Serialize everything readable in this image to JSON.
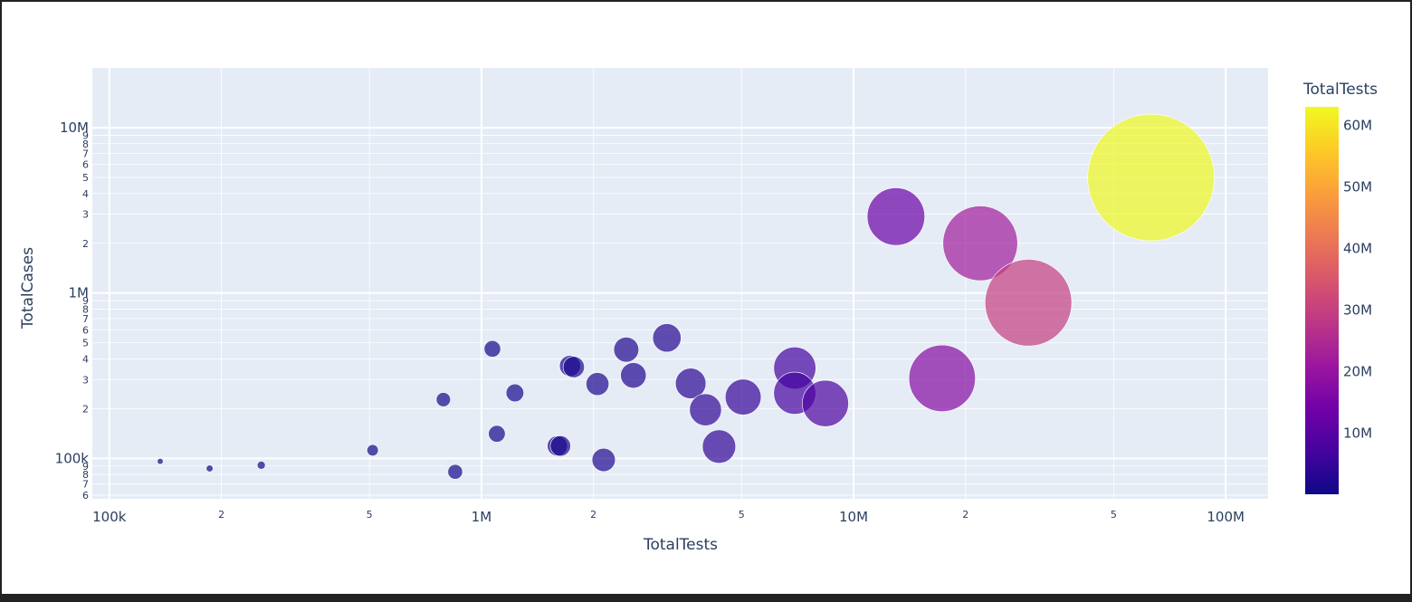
{
  "chart_data": {
    "type": "scatter",
    "subtype": "bubble",
    "xlabel": "TotalTests",
    "ylabel": "TotalCases",
    "x_scale": "log",
    "y_scale": "log",
    "xlim": [
      90000,
      130000000
    ],
    "ylim": [
      57000,
      23000000
    ],
    "grid": true,
    "x_major_ticks": [
      {
        "value": 100000,
        "label": "100k"
      },
      {
        "value": 1000000,
        "label": "1M"
      },
      {
        "value": 10000000,
        "label": "10M"
      },
      {
        "value": 100000000,
        "label": "100M"
      }
    ],
    "x_minor_ticks": [
      {
        "value": 200000,
        "label": "2"
      },
      {
        "value": 500000,
        "label": "5"
      },
      {
        "value": 2000000,
        "label": "2"
      },
      {
        "value": 5000000,
        "label": "5"
      },
      {
        "value": 20000000,
        "label": "2"
      },
      {
        "value": 50000000,
        "label": "5"
      }
    ],
    "y_major_ticks": [
      {
        "value": 100000,
        "label": "100k"
      },
      {
        "value": 1000000,
        "label": "1M"
      },
      {
        "value": 10000000,
        "label": "10M"
      }
    ],
    "y_minor_ticks": [
      {
        "value": 60000,
        "label": "6"
      },
      {
        "value": 70000,
        "label": "7"
      },
      {
        "value": 80000,
        "label": "8"
      },
      {
        "value": 90000,
        "label": "9"
      },
      {
        "value": 200000,
        "label": "2"
      },
      {
        "value": 300000,
        "label": "3"
      },
      {
        "value": 400000,
        "label": "4"
      },
      {
        "value": 500000,
        "label": "5"
      },
      {
        "value": 600000,
        "label": "6"
      },
      {
        "value": 700000,
        "label": "7"
      },
      {
        "value": 800000,
        "label": "8"
      },
      {
        "value": 900000,
        "label": "9"
      },
      {
        "value": 2000000,
        "label": "2"
      },
      {
        "value": 3000000,
        "label": "3"
      },
      {
        "value": 4000000,
        "label": "4"
      },
      {
        "value": 5000000,
        "label": "5"
      },
      {
        "value": 6000000,
        "label": "6"
      },
      {
        "value": 7000000,
        "label": "7"
      },
      {
        "value": 8000000,
        "label": "8"
      },
      {
        "value": 9000000,
        "label": "9"
      }
    ],
    "colorbar": {
      "title": "TotalTests",
      "min": 100000,
      "max": 63000000,
      "ticks": [
        {
          "value": 10000000,
          "label": "10M"
        },
        {
          "value": 20000000,
          "label": "20M"
        },
        {
          "value": 30000000,
          "label": "30M"
        },
        {
          "value": 40000000,
          "label": "40M"
        },
        {
          "value": 50000000,
          "label": "50M"
        },
        {
          "value": 60000000,
          "label": "60M"
        }
      ],
      "colors": [
        "#0d0887",
        "#46039f",
        "#7201a8",
        "#9c179e",
        "#bd3786",
        "#d8576b",
        "#ed7953",
        "#fb9f3a",
        "#fdca26",
        "#f0f921"
      ]
    },
    "points": [
      {
        "x": 137000,
        "y": 96000
      },
      {
        "x": 186000,
        "y": 87000
      },
      {
        "x": 256000,
        "y": 91000
      },
      {
        "x": 510000,
        "y": 112000
      },
      {
        "x": 790000,
        "y": 227000
      },
      {
        "x": 850000,
        "y": 83000
      },
      {
        "x": 1070000,
        "y": 460000
      },
      {
        "x": 1100000,
        "y": 141000
      },
      {
        "x": 1230000,
        "y": 249000
      },
      {
        "x": 1600000,
        "y": 119000
      },
      {
        "x": 1630000,
        "y": 119000
      },
      {
        "x": 1730000,
        "y": 363000
      },
      {
        "x": 1770000,
        "y": 357000
      },
      {
        "x": 2050000,
        "y": 282000
      },
      {
        "x": 2130000,
        "y": 98000
      },
      {
        "x": 2450000,
        "y": 455000
      },
      {
        "x": 2560000,
        "y": 318000
      },
      {
        "x": 3150000,
        "y": 536000
      },
      {
        "x": 3650000,
        "y": 284000
      },
      {
        "x": 4000000,
        "y": 197000
      },
      {
        "x": 4350000,
        "y": 118000
      },
      {
        "x": 5050000,
        "y": 235000
      },
      {
        "x": 6950000,
        "y": 352000
      },
      {
        "x": 6950000,
        "y": 248000
      },
      {
        "x": 8400000,
        "y": 215000
      },
      {
        "x": 13000000,
        "y": 2900000
      },
      {
        "x": 17300000,
        "y": 305000
      },
      {
        "x": 21900000,
        "y": 2000000
      },
      {
        "x": 29500000,
        "y": 875000
      },
      {
        "x": 63000000,
        "y": 5000000
      }
    ]
  }
}
